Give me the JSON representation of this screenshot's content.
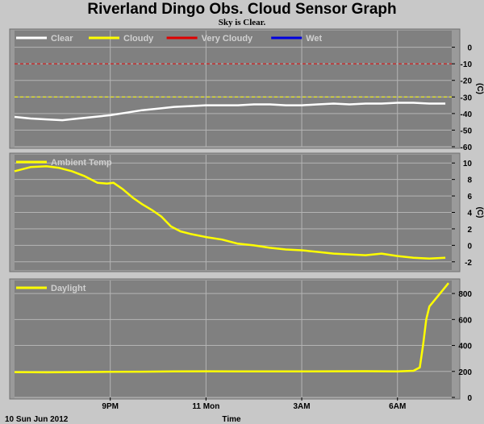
{
  "title": "Riverland Dingo Obs. Cloud Sensor Graph",
  "subtitle": "Sky is Clear.",
  "x_axis": {
    "date_label": "10 Sun Jun 2012",
    "time_label": "Time",
    "ticks": [
      {
        "label": "9PM",
        "hour": 3.0
      },
      {
        "label": "11 Mon",
        "hour": 6.0
      },
      {
        "label": "3AM",
        "hour": 9.0
      },
      {
        "label": "6AM",
        "hour": 12.0
      }
    ]
  },
  "colors": {
    "plot_bg": "#808080",
    "page_bg": "#c8c8c8",
    "grid": "#b4b4b4",
    "clear": "#ffffff",
    "cloudy": "#ffff00",
    "very_cloudy": "#e00000",
    "wet": "#0000e0"
  },
  "chart_data": [
    {
      "type": "line",
      "unit_label": "(C)",
      "ylim": [
        -60,
        10
      ],
      "yticks": [
        0,
        -10,
        -20,
        -30,
        -40,
        -50,
        -60
      ],
      "legend": [
        {
          "name": "Clear",
          "color": "#ffffff"
        },
        {
          "name": "Cloudy",
          "color": "#ffff00"
        },
        {
          "name": "Very Cloudy",
          "color": "#e00000"
        },
        {
          "name": "Wet",
          "color": "#0000e0"
        }
      ],
      "thresholds": [
        {
          "name": "Very Cloudy",
          "value": -10,
          "color": "#e00000"
        },
        {
          "name": "Cloudy",
          "value": -30,
          "color": "#ffff00"
        }
      ],
      "series": [
        {
          "name": "Clear",
          "color": "#ffffff",
          "x": [
            0,
            0.5,
            1.0,
            1.5,
            2.0,
            2.5,
            3.0,
            3.5,
            4.0,
            4.5,
            5.0,
            5.5,
            6.0,
            6.5,
            7.0,
            7.5,
            8.0,
            8.5,
            9.0,
            9.5,
            10.0,
            10.5,
            11.0,
            11.5,
            12.0,
            12.5,
            13.0,
            13.5
          ],
          "y": [
            -42,
            -43,
            -43.5,
            -44,
            -43,
            -42,
            -41,
            -39.5,
            -38,
            -37,
            -36,
            -35.5,
            -35,
            -35,
            -35,
            -34.5,
            -34.5,
            -35,
            -35,
            -34.5,
            -34,
            -34.5,
            -34,
            -34,
            -33.5,
            -33.5,
            -34,
            -34
          ]
        }
      ]
    },
    {
      "type": "line",
      "unit_label": "(C)",
      "ylim": [
        -3,
        11
      ],
      "yticks": [
        10,
        8,
        6,
        4,
        2,
        0,
        -2
      ],
      "legend": [
        {
          "name": "Ambient Temp",
          "color": "#ffff00"
        }
      ],
      "series": [
        {
          "name": "Ambient Temp",
          "color": "#ffff00",
          "x": [
            0,
            0.5,
            1.0,
            1.4,
            1.8,
            2.2,
            2.6,
            2.9,
            3.1,
            3.4,
            3.7,
            4.0,
            4.3,
            4.6,
            4.9,
            5.2,
            5.5,
            6.0,
            6.5,
            7.0,
            7.5,
            8.0,
            8.5,
            9.0,
            9.5,
            10.0,
            10.5,
            11.0,
            11.5,
            12.0,
            12.5,
            13.0,
            13.5
          ],
          "y": [
            9,
            9.5,
            9.6,
            9.4,
            9.0,
            8.4,
            7.6,
            7.5,
            7.6,
            6.8,
            5.8,
            5.0,
            4.3,
            3.5,
            2.3,
            1.7,
            1.4,
            1.0,
            0.7,
            0.2,
            0.0,
            -0.3,
            -0.5,
            -0.6,
            -0.8,
            -1.0,
            -1.1,
            -1.2,
            -1.0,
            -1.3,
            -1.5,
            -1.6,
            -1.5
          ]
        }
      ]
    },
    {
      "type": "line",
      "unit_label": "",
      "ylim": [
        0,
        900
      ],
      "yticks": [
        800,
        600,
        400,
        200,
        0
      ],
      "legend": [
        {
          "name": "Daylight",
          "color": "#ffff00"
        }
      ],
      "series": [
        {
          "name": "Daylight",
          "color": "#ffff00",
          "x": [
            0,
            1,
            2,
            3,
            4,
            5,
            6,
            7,
            8,
            9,
            10,
            11,
            12,
            12.5,
            12.7,
            12.8,
            12.9,
            13.0,
            13.2,
            13.4,
            13.6
          ],
          "y": [
            195,
            193,
            195,
            197,
            198,
            200,
            201,
            200,
            200,
            200,
            201,
            202,
            200,
            205,
            230,
            400,
            600,
            700,
            760,
            820,
            880
          ]
        }
      ]
    }
  ]
}
